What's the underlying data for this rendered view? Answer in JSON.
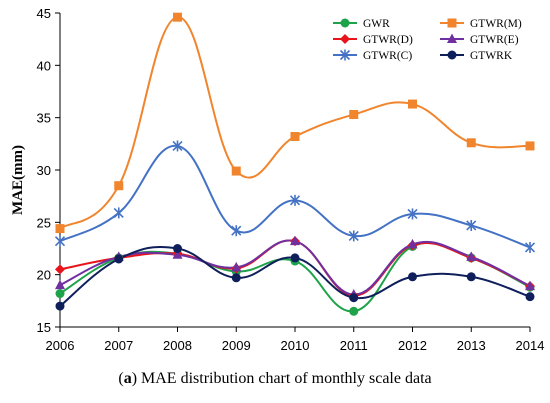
{
  "caption": {
    "letter": "a",
    "text": "MAE distribution chart of monthly scale data"
  },
  "chart_data": {
    "type": "line",
    "smooth": true,
    "ylabel": "MAE(mm)",
    "xlabel": "",
    "x": [
      2006,
      2007,
      2008,
      2009,
      2010,
      2011,
      2012,
      2013,
      2014
    ],
    "ylim": [
      15,
      45
    ],
    "yticks": [
      15,
      20,
      25,
      30,
      35,
      40,
      45
    ],
    "grid": false,
    "legend_position": "top-right",
    "series": [
      {
        "name": "GWR",
        "color": "#1fa34a",
        "marker": "circle",
        "values": [
          18.2,
          21.6,
          22.0,
          20.3,
          21.3,
          16.5,
          22.7,
          21.6,
          18.8
        ]
      },
      {
        "name": "GTWR(M)",
        "color": "#f0852d",
        "marker": "square",
        "values": [
          24.4,
          28.5,
          44.6,
          29.9,
          33.2,
          35.3,
          36.3,
          32.6,
          32.3
        ]
      },
      {
        "name": "GTWR(D)",
        "color": "#e8141b",
        "marker": "diamond",
        "values": [
          20.5,
          21.6,
          22.0,
          20.6,
          23.2,
          18.0,
          22.8,
          21.6,
          18.9
        ]
      },
      {
        "name": "GTWR(E)",
        "color": "#7030a0",
        "marker": "triangle",
        "values": [
          19.0,
          21.7,
          21.9,
          20.7,
          23.2,
          18.1,
          22.9,
          21.7,
          18.9
        ]
      },
      {
        "name": "GTWR(C)",
        "color": "#4472c4",
        "marker": "star",
        "values": [
          23.2,
          25.9,
          32.3,
          24.2,
          27.1,
          23.7,
          25.8,
          24.7,
          22.6
        ]
      },
      {
        "name": "GTWRK",
        "color": "#0f1f5c",
        "marker": "circle",
        "values": [
          17.0,
          21.5,
          22.5,
          19.7,
          21.6,
          17.8,
          19.8,
          19.8,
          17.9
        ]
      }
    ]
  }
}
